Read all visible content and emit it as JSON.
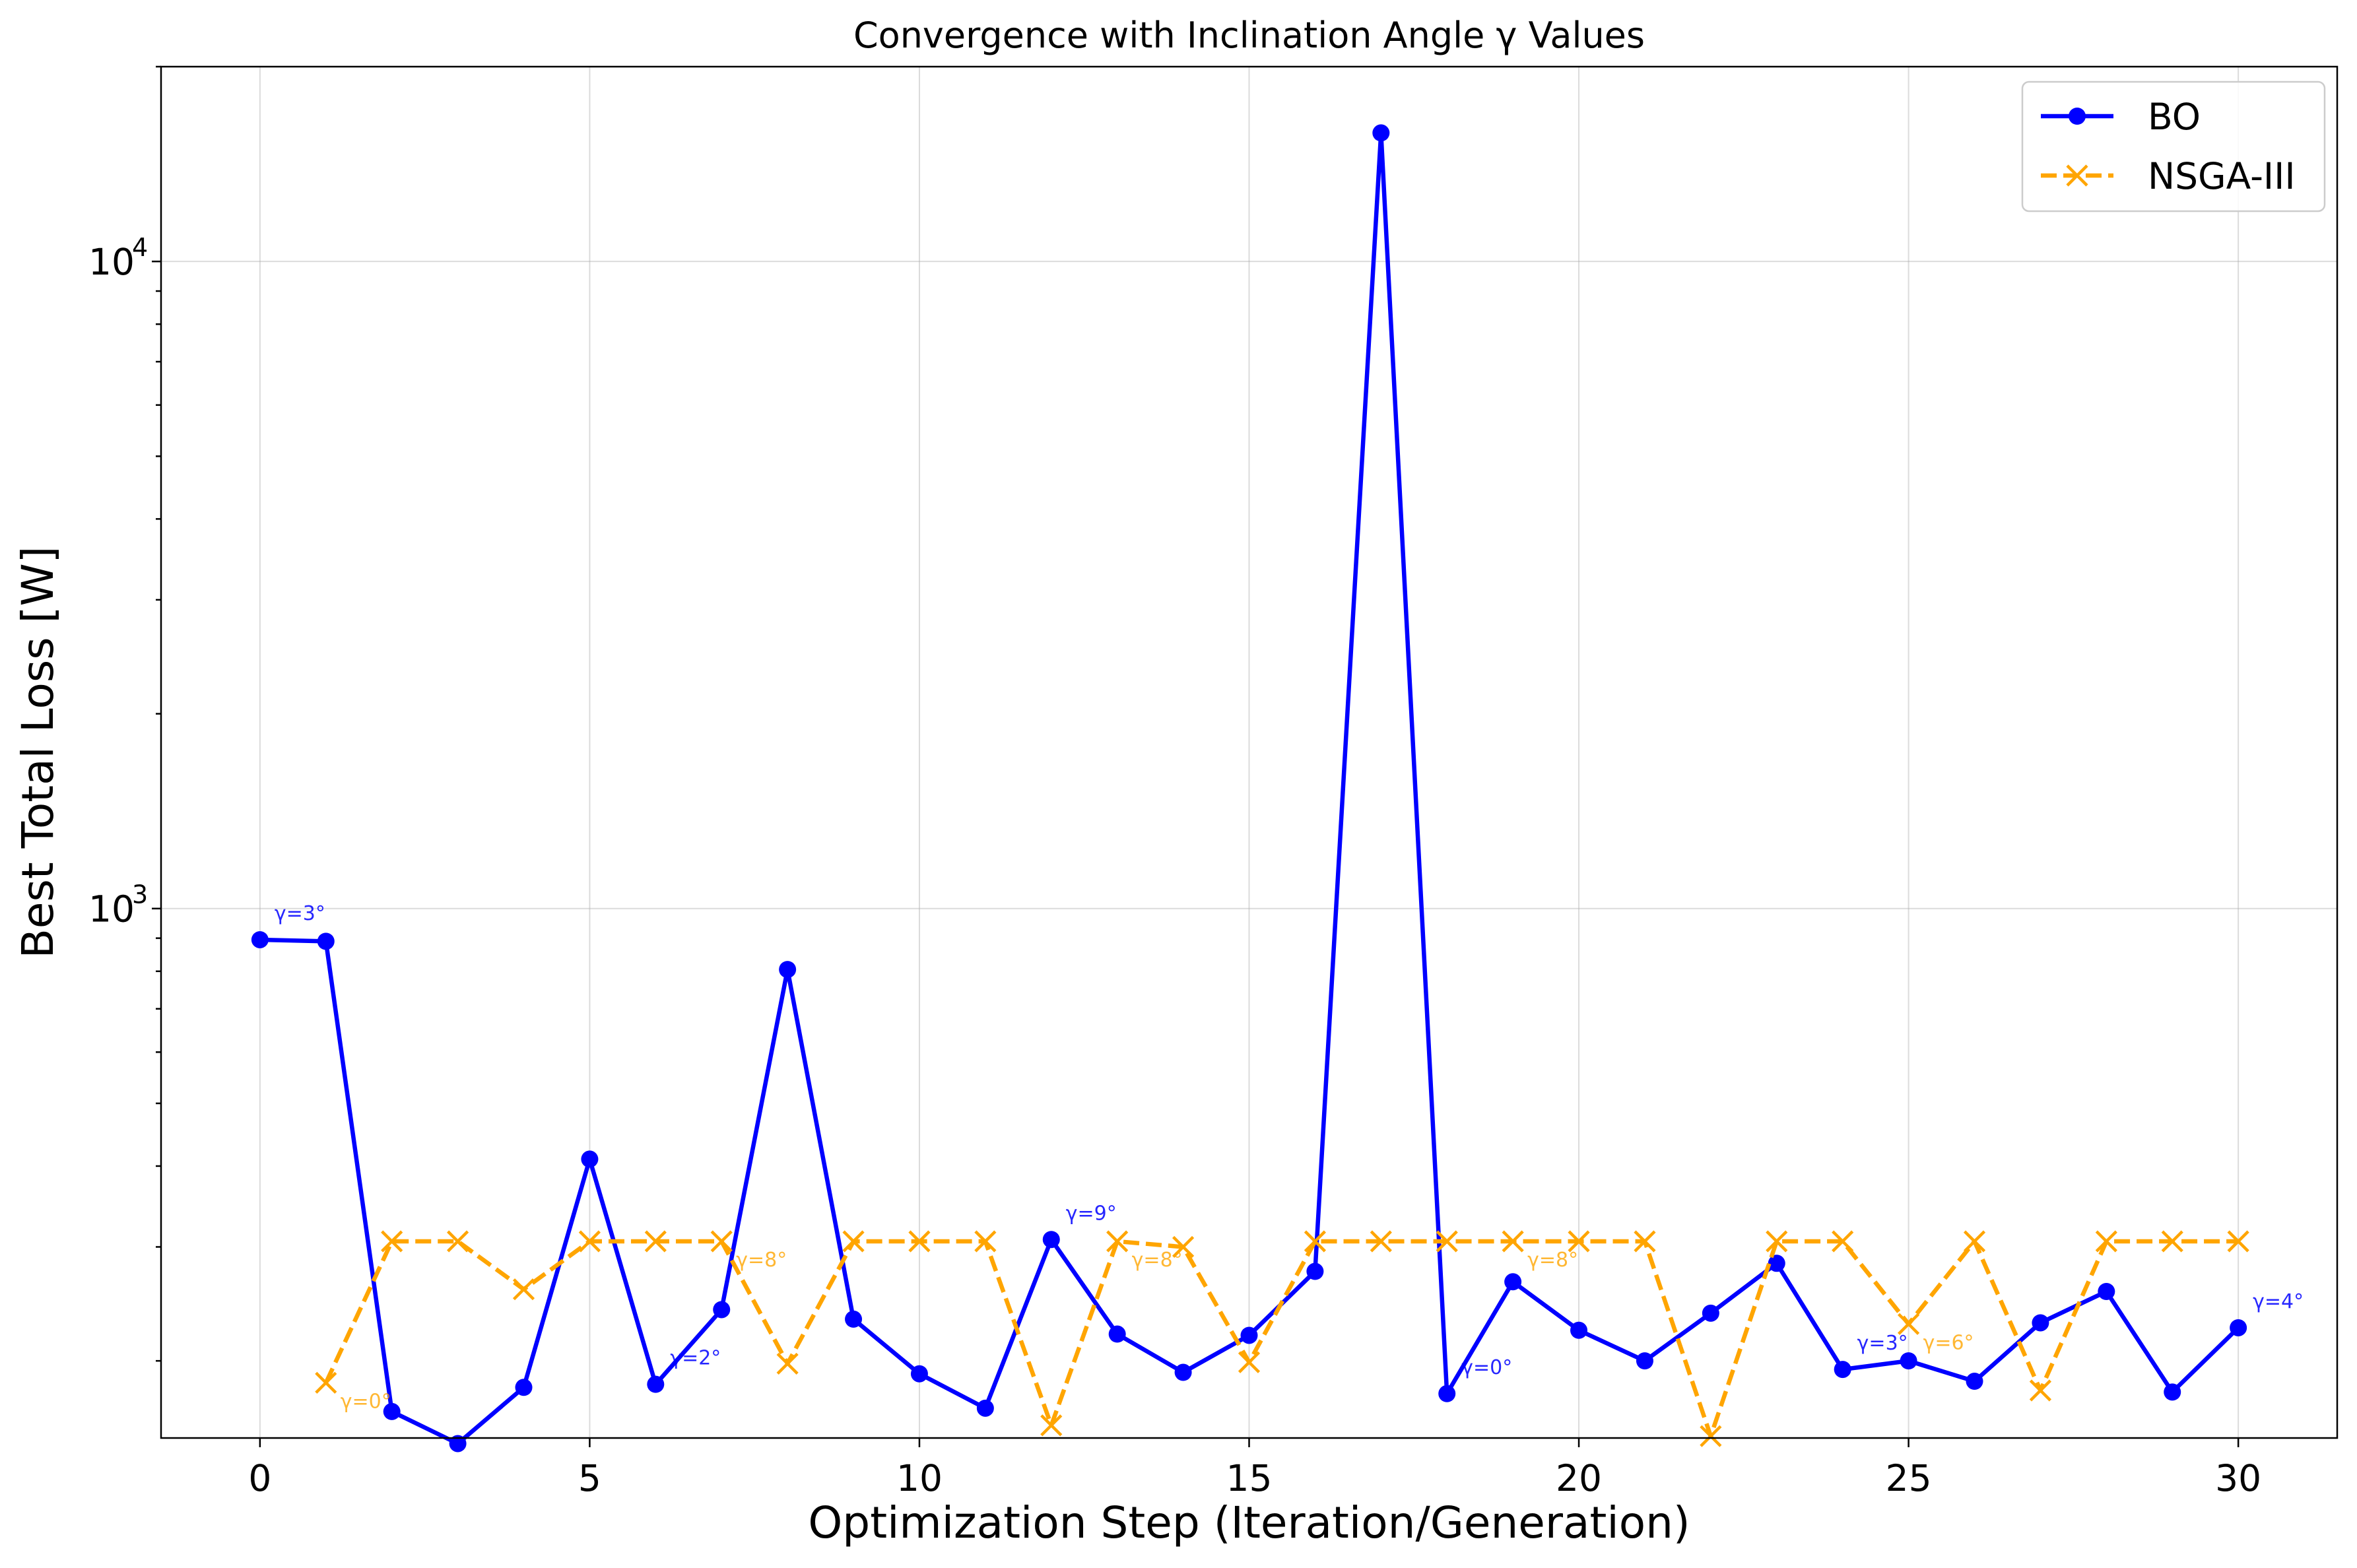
{
  "chart_data": {
    "type": "line",
    "title": "Convergence with Inclination Angle γ Values",
    "xlabel": "Optimization Step (Iteration/Generation)",
    "ylabel": "Best Total Loss [W]",
    "yscale": "log",
    "xlim": [
      -1.5,
      31.5
    ],
    "ylim": [
      152,
      20000
    ],
    "grid": true,
    "legend_position": "top-right",
    "x_ticks": [
      0,
      5,
      10,
      15,
      20,
      25,
      30
    ],
    "y_ticks": [
      {
        "value": 1000,
        "base": "10",
        "exp": "3"
      },
      {
        "value": 10000,
        "base": "10",
        "exp": "4"
      }
    ],
    "series": [
      {
        "name": "BO",
        "color": "#0000ff",
        "marker": "circle",
        "linestyle": "solid",
        "x": [
          0,
          1,
          2,
          3,
          4,
          5,
          6,
          7,
          8,
          9,
          10,
          11,
          12,
          13,
          14,
          15,
          16,
          17,
          18,
          19,
          20,
          21,
          22,
          23,
          24,
          25,
          26,
          27,
          28,
          29,
          30
        ],
        "y": [
          895,
          890,
          167,
          149,
          182,
          410,
          184,
          240,
          805,
          232,
          191,
          169,
          308,
          220,
          192,
          219,
          275,
          15800,
          178,
          265,
          223,
          200,
          237,
          283,
          194,
          200,
          186,
          229,
          256,
          179,
          225
        ],
        "annotations": [
          {
            "x": 0,
            "text": "γ=3°"
          },
          {
            "x": 6,
            "text": "γ=2°"
          },
          {
            "x": 12,
            "text": "γ=9°"
          },
          {
            "x": 18,
            "text": "γ=0°"
          },
          {
            "x": 24,
            "text": "γ=3°"
          },
          {
            "x": 30,
            "text": "γ=4°"
          }
        ]
      },
      {
        "name": "NSGA-III",
        "color": "#ffa500",
        "marker": "x",
        "linestyle": "dashed",
        "x": [
          1,
          2,
          3,
          4,
          5,
          6,
          7,
          8,
          9,
          10,
          11,
          12,
          13,
          14,
          15,
          16,
          17,
          18,
          19,
          20,
          21,
          22,
          23,
          24,
          25,
          26,
          27,
          28,
          29,
          30
        ],
        "y": [
          185,
          306,
          306,
          258,
          306,
          306,
          306,
          198,
          306,
          306,
          306,
          159,
          306,
          300,
          199,
          306,
          306,
          306,
          306,
          306,
          306,
          153,
          306,
          306,
          228,
          306,
          180,
          306,
          306,
          306
        ],
        "annotations": [
          {
            "x": 1,
            "text": "γ=0°"
          },
          {
            "x": 7,
            "text": "γ=8°"
          },
          {
            "x": 13,
            "text": "γ=8°"
          },
          {
            "x": 19,
            "text": "γ=8°"
          },
          {
            "x": 25,
            "text": "γ=6°"
          }
        ]
      }
    ]
  }
}
